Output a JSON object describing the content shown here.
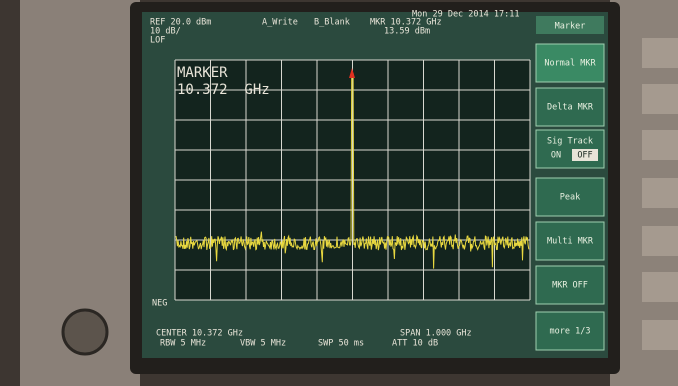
{
  "status": {
    "ref": "REF 20.0 dBm",
    "scale": "10 dB/",
    "lof": "LOF",
    "trace_a": "A_Write",
    "trace_b": "B_Blank",
    "marker_freq": "MKR 10.372 GHz",
    "marker_level": "13.59 dBm",
    "datetime": "Mon 29 Dec 2014 17:11"
  },
  "display": {
    "marker_title": "MARKER",
    "marker_value": "10.372  GHz",
    "detector": "NEG"
  },
  "footer": {
    "center": "CENTER 10.372 GHz",
    "span": "SPAN 1.000 GHz",
    "rbw": "RBW 5 MHz",
    "vbw": "VBW 5 MHz",
    "sweep": "SWP 50 ms",
    "atten": "ATT 10 dB"
  },
  "softkeys": {
    "title": "Marker",
    "items": [
      "Normal MKR",
      "Delta MKR",
      "Sig Track",
      "Peak",
      "Multi MKR",
      "MKR OFF",
      "more 1/3"
    ],
    "sig_track_states": [
      "ON",
      "OFF"
    ]
  }
}
